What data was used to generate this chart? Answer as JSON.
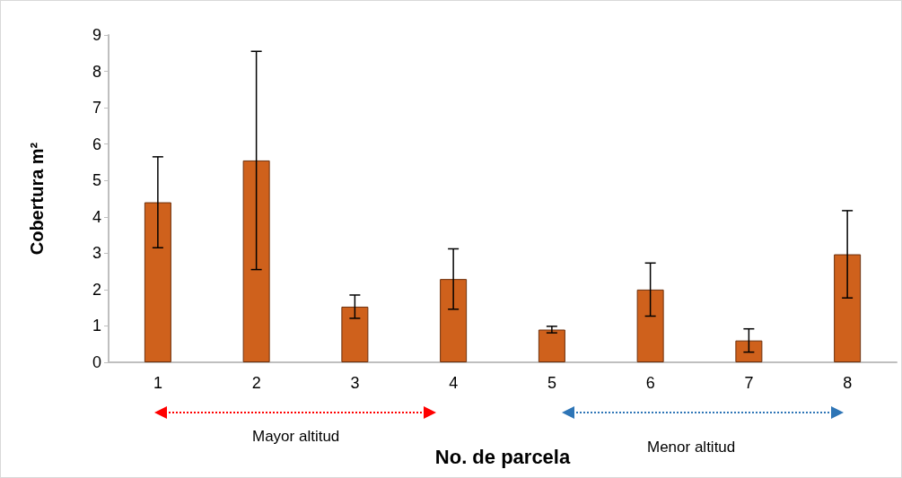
{
  "chart_data": {
    "type": "bar",
    "xlabel": "No. de parcela",
    "ylabel": "Cobertura m²",
    "categories": [
      "1",
      "2",
      "3",
      "4",
      "5",
      "6",
      "7",
      "8"
    ],
    "values": [
      4.4,
      5.55,
      1.53,
      2.29,
      0.9,
      2.0,
      0.6,
      2.97
    ],
    "errors": [
      1.25,
      3.0,
      0.32,
      0.83,
      0.09,
      0.73,
      0.32,
      1.2
    ],
    "color": "#cf611c",
    "ylim": [
      0,
      9
    ],
    "yticks": [
      0,
      1,
      2,
      3,
      4,
      5,
      6,
      7,
      8,
      9
    ],
    "grid": false,
    "annotations": [
      "Mayor altitud",
      "Menor altitud"
    ]
  }
}
